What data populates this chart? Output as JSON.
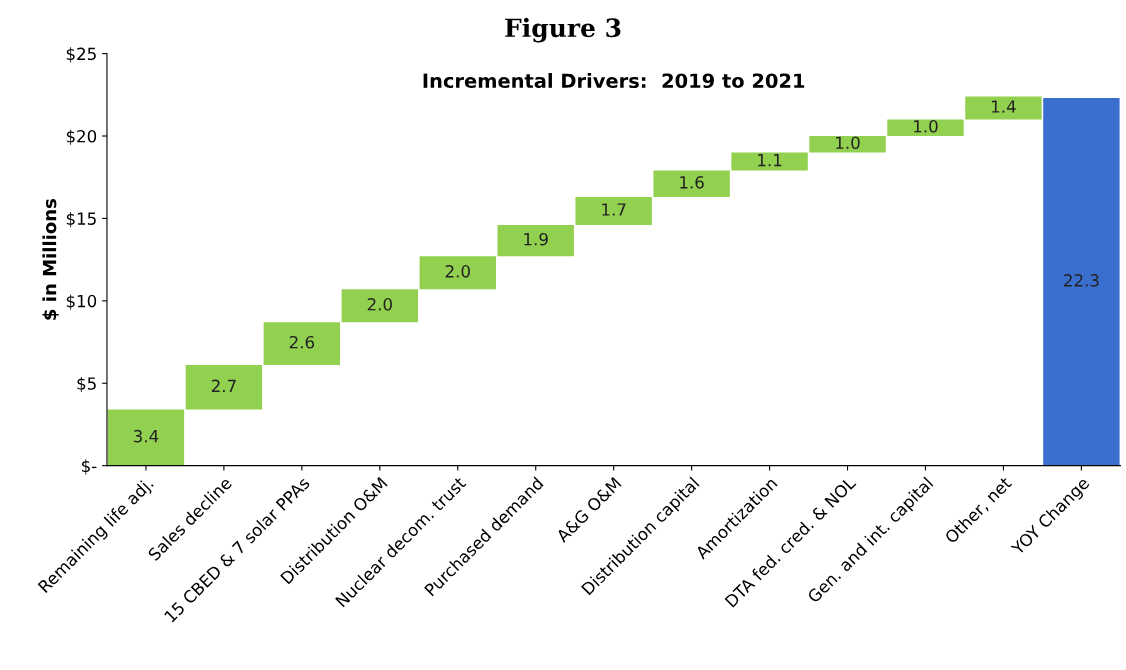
{
  "chart_data": {
    "type": "bar",
    "title": "Figure 3",
    "subtitle": "Incremental Drivers:  2019 to 2021",
    "ylabel": "$ in Millions",
    "categories": [
      "Remaining life adj.",
      "Sales decline",
      "15 CBED & 7 solar PPAs",
      "Distribution O&M",
      "Nuclear decom. trust",
      "Purchased demand",
      "A&G O&M",
      "Distribution capital",
      "Amortization",
      "DTA fed. cred. & NOL",
      "Gen. and int. capital",
      "Other, net",
      "YOY Change"
    ],
    "values": [
      3.4,
      2.7,
      2.6,
      2.0,
      2.0,
      1.9,
      1.7,
      1.6,
      1.1,
      1.0,
      1.0,
      1.4,
      22.3
    ],
    "base": [
      0,
      3.4,
      6.1,
      8.7,
      10.7,
      12.7,
      14.6,
      16.3,
      17.9,
      19.0,
      20.0,
      21.0,
      0
    ],
    "colors": [
      "#92d050",
      "#92d050",
      "#92d050",
      "#92d050",
      "#92d050",
      "#92d050",
      "#92d050",
      "#92d050",
      "#92d050",
      "#92d050",
      "#92d050",
      "#92d050",
      "#3b6fcf"
    ],
    "ylim": [
      0,
      25
    ],
    "yticks": [
      {
        "value": 0,
        "label": "$-"
      },
      {
        "value": 5,
        "label": "$5"
      },
      {
        "value": 10,
        "label": "$10"
      },
      {
        "value": 15,
        "label": "$15"
      },
      {
        "value": 20,
        "label": "$20"
      },
      {
        "value": 25,
        "label": "$25"
      }
    ],
    "value_labels": [
      "3.4",
      "2.7",
      "2.6",
      "2.0",
      "2.0",
      "1.9",
      "1.7",
      "1.6",
      "1.1",
      "1.0",
      "1.0",
      "1.4",
      "22.3"
    ],
    "grid": false,
    "legend": false
  }
}
